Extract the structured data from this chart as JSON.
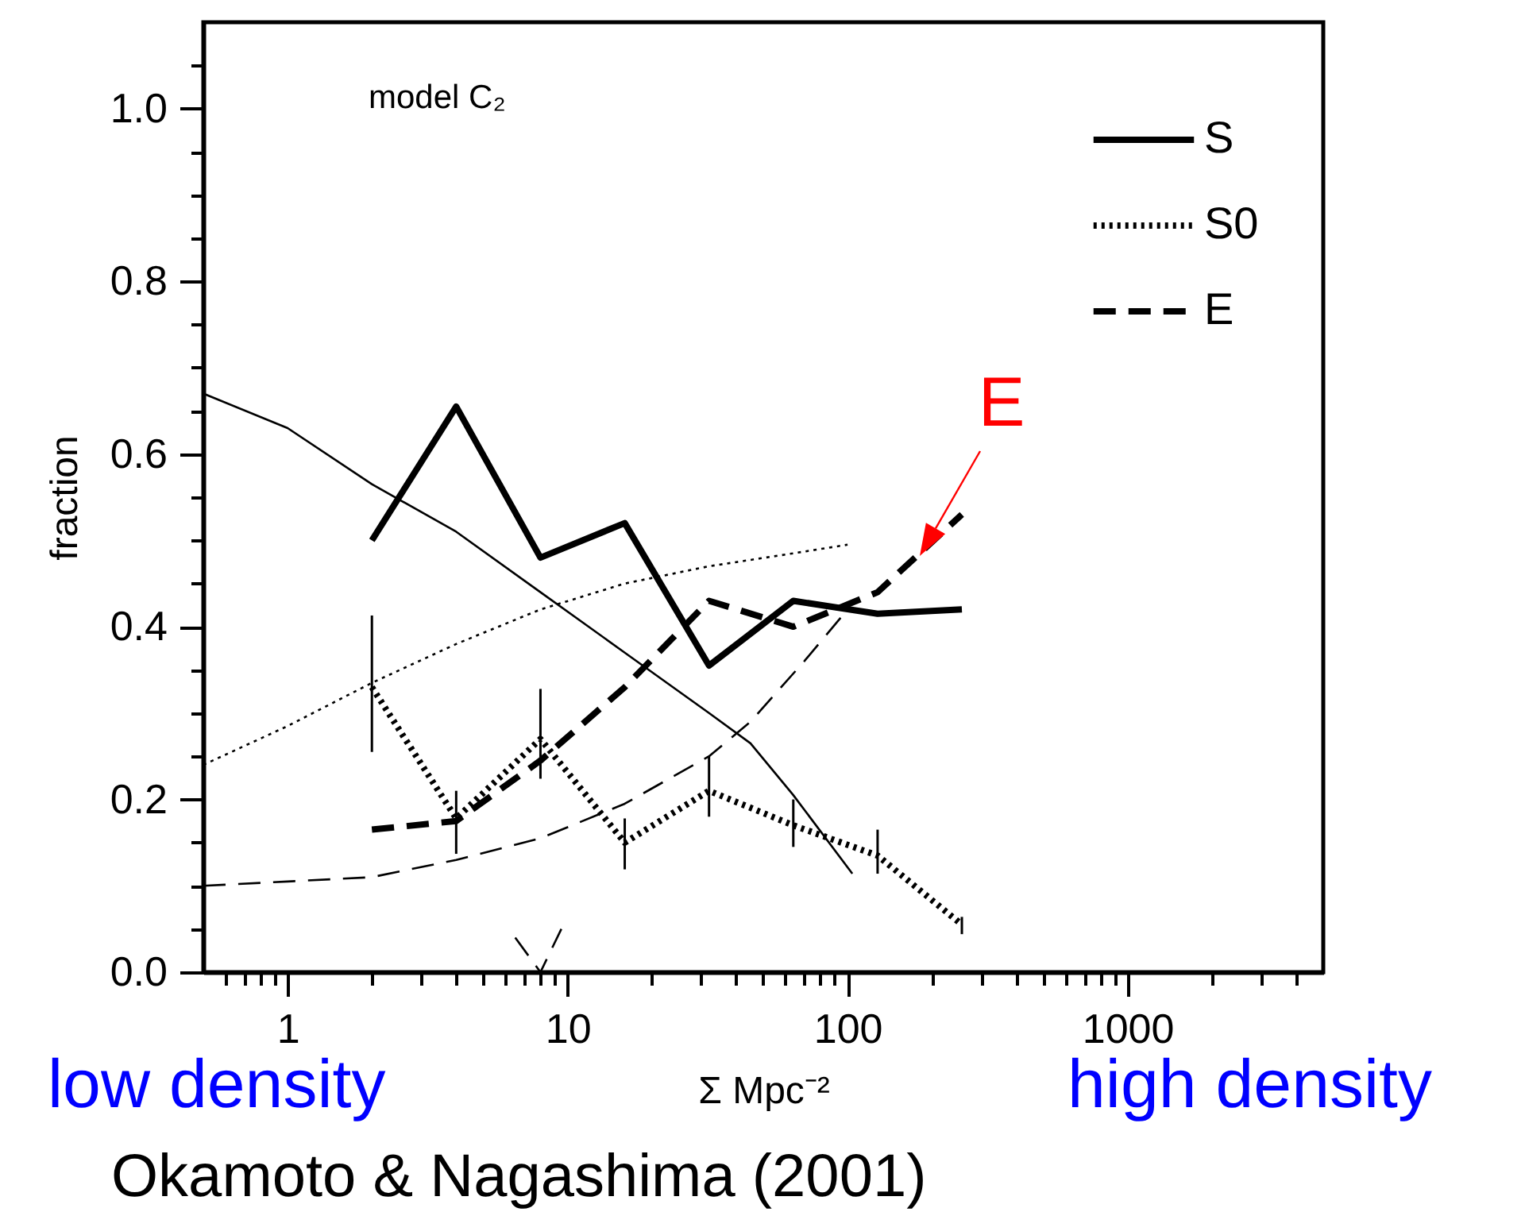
{
  "chart_data": {
    "type": "line",
    "xlabel": "Σ Mpc⁻²",
    "ylabel": "fraction",
    "log": "x",
    "legend": "top right",
    "xlim": [
      0.5,
      5000
    ],
    "ylim": [
      0,
      1.1
    ],
    "xticks": [
      {
        "value": 0.6,
        "label": null
      },
      {
        "value": 0.7,
        "label": null
      },
      {
        "value": 0.8,
        "label": null
      },
      {
        "value": 0.9,
        "label": null
      },
      1,
      {
        "value": 2,
        "label": null
      },
      {
        "value": 3,
        "label": null
      },
      {
        "value": 4,
        "label": null
      },
      {
        "value": 5,
        "label": null
      },
      {
        "value": 6,
        "label": null
      },
      {
        "value": 7,
        "label": null
      },
      {
        "value": 8,
        "label": null
      },
      {
        "value": 9,
        "label": null
      },
      10,
      {
        "value": 20,
        "label": null
      },
      {
        "value": 30,
        "label": null
      },
      {
        "value": 40,
        "label": null
      },
      {
        "value": 50,
        "label": null
      },
      {
        "value": 60,
        "label": null
      },
      {
        "value": 70,
        "label": null
      },
      {
        "value": 80,
        "label": null
      },
      {
        "value": 90,
        "label": null
      },
      100,
      {
        "value": 200,
        "label": null
      },
      {
        "value": 300,
        "label": null
      },
      {
        "value": 400,
        "label": null
      },
      {
        "value": 500,
        "label": null
      },
      {
        "value": 600,
        "label": null
      },
      {
        "value": 700,
        "label": null
      },
      {
        "value": 800,
        "label": null
      },
      {
        "value": 900,
        "label": null
      },
      1000,
      {
        "value": 2000,
        "label": null
      },
      {
        "value": 3000,
        "label": null
      },
      {
        "value": 4000,
        "label": null
      }
    ],
    "yticks": [
      {
        "value": 0,
        "label": "0.0"
      },
      {
        "value": 0.05,
        "label": null
      },
      {
        "value": 0.1,
        "label": null
      },
      {
        "value": 0.15,
        "label": null
      },
      0.2,
      {
        "value": 0.25,
        "label": null
      },
      {
        "value": 0.3,
        "label": null
      },
      {
        "value": 0.35,
        "label": null
      },
      0.4,
      {
        "value": 0.45,
        "label": null
      },
      {
        "value": 0.5,
        "label": null
      },
      {
        "value": 0.55,
        "label": null
      },
      0.6,
      {
        "value": 0.65,
        "label": null
      },
      {
        "value": 0.7,
        "label": null
      },
      {
        "value": 0.75,
        "label": null
      },
      0.8,
      {
        "value": 0.85,
        "label": null
      },
      {
        "value": 0.9,
        "label": null
      },
      {
        "value": 0.95,
        "label": null
      },
      {
        "value": 1,
        "label": "1.0"
      },
      {
        "value": 1.05,
        "label": null
      }
    ],
    "series": [
      {
        "name": "S",
        "color": "#000000",
        "line_style": "solid",
        "x": [
          2,
          4,
          8,
          16,
          32,
          64,
          128,
          256
        ],
        "values": [
          0.5,
          0.655,
          0.48,
          0.52,
          0.355,
          0.43,
          0.415,
          0.42
        ]
      },
      {
        "name": "S0",
        "color": "#000000",
        "line_style": "dotted",
        "x": [
          2,
          4,
          8,
          16,
          32,
          64,
          128,
          256
        ],
        "values": [
          0.33,
          0.178,
          0.27,
          0.15,
          0.21,
          0.17,
          0.135,
          0.055
        ],
        "errors": [
          [
            0.255,
            0.413
          ],
          [
            0.137,
            0.21
          ],
          [
            0.224,
            0.328
          ],
          [
            0.119,
            0.178
          ],
          [
            0.18,
            0.25
          ],
          [
            0.145,
            0.2
          ],
          [
            0.114,
            0.165
          ],
          [
            0.044,
            0.064
          ]
        ]
      },
      {
        "name": "E",
        "color": "#000000",
        "line_style": "dashed",
        "x": [
          2,
          4,
          8,
          16,
          32,
          64,
          128,
          256
        ],
        "values": [
          0.165,
          0.175,
          0.245,
          0.33,
          0.43,
          0.4,
          0.44,
          0.53
        ]
      },
      {
        "color": "#000000",
        "line_style": "dashed",
        "x": [
          6.5,
          8,
          9.5
        ],
        "values": [
          0.04,
          0,
          0.05
        ]
      },
      {
        "color": "#000000",
        "line_style": "solid",
        "x": [
          0.5,
          1,
          2,
          4,
          8,
          16,
          32,
          45,
          64,
          104
        ],
        "values": [
          0.67,
          0.63,
          0.565,
          0.51,
          0.44,
          0.37,
          0.3,
          0.265,
          0.205,
          0.114
        ]
      },
      {
        "color": "#000000",
        "line_style": "dotted",
        "x": [
          0.5,
          1,
          2,
          4,
          8,
          16,
          32,
          64,
          100
        ],
        "values": [
          0.24,
          0.285,
          0.335,
          0.38,
          0.42,
          0.45,
          0.47,
          0.485,
          0.495
        ]
      },
      {
        "color": "#000000",
        "line_style": "dashed",
        "x": [
          0.5,
          1,
          2,
          4,
          8,
          16,
          32,
          45,
          70,
          100
        ],
        "values": [
          0.1,
          0.105,
          0.11,
          0.13,
          0.155,
          0.195,
          0.25,
          0.29,
          0.36,
          0.42
        ]
      }
    ],
    "annotations": [
      "model C₂",
      {
        "text": "E",
        "x": 180,
        "y": 0.482
      },
      "low density",
      "high density",
      "Okamoto & Nagashima (2001)"
    ]
  }
}
